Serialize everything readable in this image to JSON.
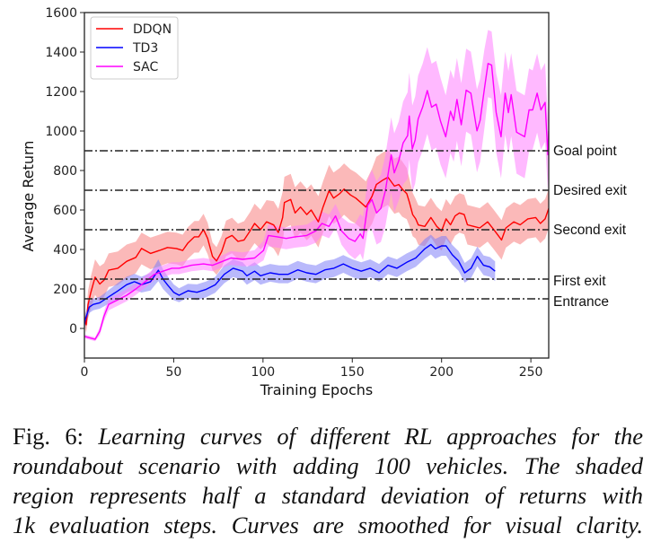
{
  "chart_data": {
    "type": "line",
    "title": "",
    "xlabel": "Training Epochs",
    "ylabel": "Average Return",
    "xlim": [
      0,
      260
    ],
    "ylim": [
      -150,
      1600
    ],
    "xticks": [
      0,
      50,
      100,
      150,
      200,
      250
    ],
    "yticks": [
      0,
      200,
      400,
      600,
      800,
      1000,
      1200,
      1400,
      1600
    ],
    "grid": false,
    "legend": {
      "placement": "top-left",
      "entries": [
        "DDQN",
        "TD3",
        "SAC"
      ]
    },
    "reference_lines": [
      {
        "label": "Goal point",
        "y": 900
      },
      {
        "label": "Desired exit",
        "y": 700
      },
      {
        "label": "Second exit",
        "y": 500
      },
      {
        "label": "First exit",
        "y": 250
      },
      {
        "label": "Entrance",
        "y": 150
      }
    ],
    "series": [
      {
        "name": "DDQN",
        "color": "#ff0000",
        "band_color": "#f88080",
        "x": [
          0,
          1,
          2,
          3.5,
          6,
          8.6,
          11,
          13.6,
          18.7,
          23.7,
          28.8,
          32,
          37,
          42,
          46.5,
          51.5,
          55,
          58,
          61.6,
          64,
          66.7,
          69,
          71.7,
          74,
          76.8,
          79.3,
          82.7,
          86,
          89.4,
          92.8,
          95.3,
          98.6,
          102,
          106,
          108.6,
          111,
          112,
          115.5,
          118,
          121,
          124.5,
          127,
          131,
          133.6,
          137,
          139.5,
          143,
          145.4,
          149,
          152,
          154.5,
          157.6,
          161,
          163.5,
          167,
          170,
          173.6,
          176,
          178,
          180.5,
          182,
          183.8,
          185.5,
          187,
          190.6,
          194,
          197.3,
          200,
          202.5,
          205,
          207.6,
          210,
          212.7,
          214.5,
          218,
          221.4,
          225.8,
          229.2,
          233.6,
          236,
          240.5,
          244,
          248.3,
          252.7,
          255.3,
          258,
          260
        ],
        "y": [
          60,
          18,
          120,
          180,
          260,
          225,
          245,
          295,
          305,
          340,
          360,
          405,
          380,
          395,
          410,
          405,
          395,
          433,
          464,
          464,
          501,
          456,
          365,
          342,
          388,
          456,
          471,
          441,
          448,
          494,
          532,
          501,
          540,
          524,
          486,
          562,
          638,
          653,
          585,
          615,
          577,
          600,
          540,
          615,
          698,
          660,
          683,
          706,
          676,
          660,
          640,
          615,
          668,
          729,
          751,
          766,
          721,
          729,
          706,
          683,
          638,
          577,
          555,
          524,
          517,
          562,
          517,
          494,
          555,
          525,
          570,
          585,
          577,
          525,
          517,
          509,
          540,
          501,
          448,
          509,
          540,
          525,
          555,
          562,
          532,
          555,
          608
        ],
        "band": [
          40,
          40,
          70,
          80,
          90,
          90,
          85,
          85,
          85,
          85,
          80,
          80,
          80,
          80,
          80,
          80,
          80,
          80,
          80,
          80,
          80,
          80,
          70,
          70,
          80,
          90,
          90,
          90,
          95,
          95,
          100,
          100,
          110,
          120,
          120,
          130,
          130,
          130,
          130,
          130,
          130,
          130,
          130,
          130,
          130,
          130,
          130,
          130,
          130,
          130,
          130,
          130,
          140,
          140,
          140,
          140,
          140,
          140,
          140,
          130,
          120,
          110,
          100,
          100,
          100,
          100,
          100,
          100,
          100,
          100,
          100,
          100,
          100,
          100,
          100,
          100,
          100,
          100,
          100,
          100,
          100,
          100,
          100,
          100,
          100,
          100,
          100
        ]
      },
      {
        "name": "TD3",
        "color": "#0000ff",
        "band_color": "#8080f8",
        "x": [
          0,
          0.5,
          2.7,
          5,
          8.6,
          13.6,
          18.7,
          23.7,
          28,
          32,
          37,
          41.4,
          44,
          46.5,
          50,
          53,
          58,
          63,
          68.2,
          73.2,
          78.3,
          83.3,
          88.6,
          91,
          95.3,
          98.6,
          104,
          109,
          114,
          119.5,
          124.5,
          129.6,
          134.7,
          139.7,
          145,
          150,
          155,
          160,
          165,
          170,
          175,
          180.5,
          185.5,
          190.6,
          194,
          196.5,
          200,
          202.5,
          206,
          209.5,
          213,
          216.5,
          220,
          223.5,
          227,
          230
        ],
        "y": [
          20,
          45,
          108,
          122,
          130,
          160,
          190,
          222,
          237,
          222,
          237,
          295,
          250,
          221,
          183,
          168,
          191,
          183,
          198,
          221,
          274,
          305,
          290,
          267,
          290,
          267,
          282,
          274,
          274,
          297,
          282,
          274,
          297,
          305,
          327,
          305,
          290,
          305,
          282,
          320,
          305,
          335,
          357,
          403,
          425,
          403,
          418,
          418,
          373,
          342,
          282,
          305,
          365,
          320,
          312,
          290
        ],
        "band": [
          30,
          30,
          30,
          30,
          30,
          35,
          40,
          40,
          40,
          40,
          45,
          55,
          50,
          45,
          40,
          35,
          35,
          40,
          40,
          40,
          45,
          45,
          45,
          45,
          45,
          45,
          45,
          45,
          45,
          45,
          45,
          45,
          45,
          45,
          45,
          45,
          45,
          45,
          45,
          45,
          45,
          45,
          45,
          50,
          50,
          50,
          50,
          50,
          50,
          50,
          50,
          50,
          50,
          50,
          50,
          50
        ]
      },
      {
        "name": "SAC",
        "color": "#ff00ff",
        "band_color": "#ff80ff",
        "x": [
          0,
          2,
          6,
          8.6,
          11,
          13.6,
          18.7,
          23.7,
          28.8,
          34,
          39,
          44,
          49,
          53,
          60,
          66.7,
          71.7,
          76,
          82,
          88.6,
          95.3,
          100.3,
          103,
          108,
          113,
          118,
          124.5,
          129.6,
          133,
          137,
          140.6,
          144,
          148,
          151.5,
          154.5,
          156,
          158.6,
          161,
          163.6,
          166,
          168.5,
          171.8,
          173.5,
          176,
          178.5,
          181,
          181.9,
          183.6,
          185.2,
          186.9,
          189.4,
          192,
          194.4,
          197,
          199.4,
          202.3,
          205,
          206.8,
          208.6,
          211,
          213.8,
          216.4,
          219.8,
          221.6,
          224,
          226,
          228,
          230.6,
          233.3,
          235.6,
          237.4,
          239,
          242,
          246.5,
          249,
          251,
          253.5,
          255.6,
          258,
          259.5,
          260
        ],
        "y": [
          -40,
          -45,
          -55,
          -14,
          63,
          122,
          145,
          168,
          200,
          237,
          273,
          290,
          305,
          305,
          320,
          327,
          320,
          335,
          357,
          350,
          357,
          395,
          471,
          464,
          456,
          464,
          471,
          494,
          532,
          517,
          570,
          494,
          456,
          441,
          479,
          456,
          623,
          653,
          585,
          608,
          697,
          879,
          788,
          849,
          940,
          977,
          1076,
          909,
          955,
          1061,
          1121,
          1205,
          1121,
          1136,
          1050,
          971,
          1100,
          1054,
          1160,
          1032,
          1207,
          1192,
          1001,
          1054,
          1214,
          1342,
          1334,
          1093,
          971,
          1192,
          1093,
          1184,
          994,
          971,
          1107,
          1107,
          1192,
          1107,
          1145,
          880,
          1000
        ],
        "band": [
          10,
          10,
          10,
          20,
          25,
          30,
          30,
          30,
          30,
          30,
          30,
          30,
          30,
          30,
          30,
          30,
          30,
          30,
          35,
          35,
          40,
          50,
          55,
          55,
          55,
          55,
          55,
          60,
          60,
          60,
          60,
          70,
          80,
          90,
          100,
          110,
          130,
          150,
          160,
          170,
          180,
          190,
          200,
          200,
          210,
          220,
          220,
          220,
          220,
          220,
          220,
          220,
          220,
          220,
          220,
          210,
          210,
          210,
          210,
          210,
          210,
          210,
          210,
          210,
          200,
          170,
          170,
          200,
          210,
          210,
          210,
          210,
          210,
          210,
          210,
          200,
          200,
          200,
          200,
          180,
          180
        ]
      }
    ]
  },
  "caption": {
    "prefix": "Fig. 6:",
    "lines": [
      "Learning curves of different RL approaches for the",
      "roundabout scenario with adding 100 vehicles. The shaded",
      "region represents half a standard deviation of returns with",
      "1k evaluation steps. Curves are smoothed for visual clarity."
    ]
  }
}
